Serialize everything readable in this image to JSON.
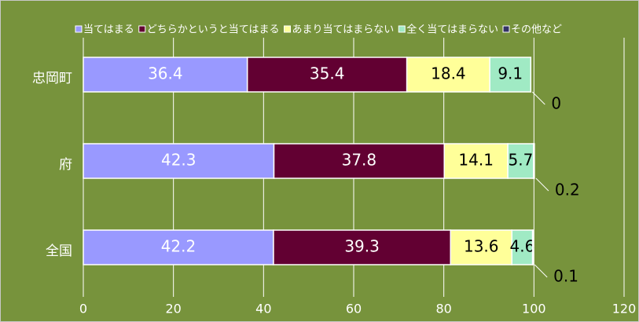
{
  "chart_data": {
    "type": "stacked_barh",
    "categories": [
      "忠岡町",
      "府",
      "全国"
    ],
    "series": [
      {
        "name": "当てはまる",
        "color": "#9999ff",
        "values": [
          36.4,
          42.3,
          42.2
        ]
      },
      {
        "name": "どちらかというと当てはまる",
        "color": "#620032",
        "values": [
          35.4,
          37.8,
          39.3
        ]
      },
      {
        "name": "あまり当てはまらない",
        "color": "#ffff99",
        "values": [
          18.4,
          14.1,
          13.6
        ]
      },
      {
        "name": "全く当てはまらない",
        "color": "#a0eac4",
        "values": [
          9.1,
          5.7,
          4.6
        ]
      },
      {
        "name": "その他など",
        "color": "#333366",
        "values": [
          0,
          0.2,
          0.1
        ]
      }
    ],
    "xlim": [
      0,
      120
    ],
    "xticks": [
      0,
      20,
      40,
      60,
      80,
      100,
      120
    ],
    "grid": true,
    "legend": "top"
  }
}
